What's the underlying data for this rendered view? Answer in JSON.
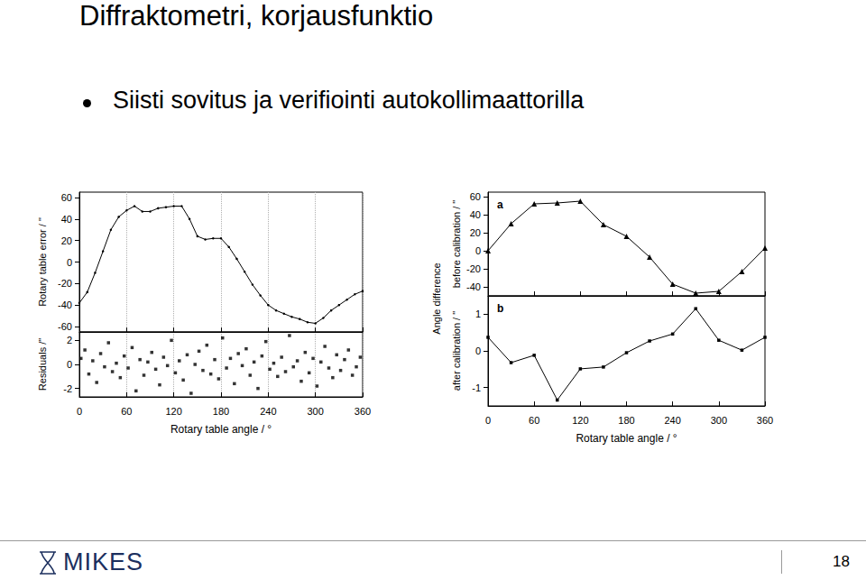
{
  "page": {
    "title": "Diffraktometri, korjausfunktio",
    "bullets": [
      "Siisti sovitus ja verifiointi autokollimaattorilla"
    ],
    "shared_y_label": "Angle difference",
    "logo": "MIKES",
    "page_number": "18"
  },
  "chart_data": [
    {
      "type": "line",
      "ylabel": "Rotary table error / \"",
      "marker": "dot",
      "color": "#000000",
      "x": [
        0,
        10,
        20,
        30,
        40,
        50,
        60,
        70,
        80,
        90,
        100,
        110,
        120,
        130,
        140,
        150,
        160,
        170,
        180,
        190,
        200,
        210,
        220,
        230,
        240,
        250,
        260,
        270,
        280,
        290,
        300,
        310,
        320,
        330,
        340,
        350,
        360
      ],
      "values": [
        -38,
        -28,
        -10,
        10,
        30,
        42,
        48,
        52,
        47,
        47,
        50,
        51,
        52,
        52,
        40,
        24,
        21,
        22,
        22,
        14,
        3,
        -9,
        -21,
        -31,
        -40,
        -45,
        -48,
        -51,
        -53,
        -56,
        -57,
        -52,
        -45,
        -40,
        -35,
        -30,
        -27
      ],
      "xlim": [
        0,
        360
      ],
      "xticks": [
        0,
        60,
        120,
        180,
        240,
        300,
        360
      ],
      "ylim": [
        -65,
        65
      ],
      "yticks": [
        -60,
        -40,
        -20,
        0,
        20,
        40,
        60
      ],
      "grid": "x",
      "tick_labels": "y"
    },
    {
      "type": "scatter",
      "ylabel": "Residuals /\"",
      "xlabel": "Rotary table angle / °",
      "marker": "square",
      "color": "#000000",
      "x": [
        2,
        7,
        12,
        17,
        22,
        27,
        32,
        37,
        42,
        47,
        52,
        57,
        62,
        67,
        72,
        77,
        82,
        87,
        92,
        97,
        102,
        107,
        112,
        117,
        122,
        127,
        132,
        137,
        142,
        147,
        152,
        157,
        162,
        167,
        172,
        177,
        182,
        187,
        192,
        197,
        202,
        207,
        212,
        217,
        222,
        227,
        232,
        237,
        242,
        247,
        252,
        257,
        262,
        267,
        272,
        277,
        282,
        287,
        292,
        297,
        302,
        307,
        312,
        317,
        322,
        327,
        332,
        337,
        342,
        347,
        352,
        357
      ],
      "values": [
        0.5,
        1.2,
        -0.8,
        0.3,
        -1.5,
        0.9,
        -0.2,
        1.8,
        -0.6,
        0.1,
        -1.1,
        0.7,
        -0.3,
        1.4,
        -2.2,
        0.4,
        -0.9,
        0.2,
        1.0,
        -0.4,
        -1.7,
        0.6,
        -0.1,
        2.0,
        -0.7,
        0.3,
        -1.3,
        0.8,
        -2.4,
        0.0,
        1.1,
        -0.5,
        1.6,
        -0.8,
        0.4,
        -1.2,
        2.2,
        -0.3,
        0.5,
        -1.6,
        0.9,
        -0.1,
        1.3,
        -0.9,
        0.2,
        -2.0,
        0.7,
        1.9,
        -0.4,
        0.1,
        -1.0,
        0.6,
        -0.6,
        2.4,
        -0.2,
        0.3,
        -1.4,
        1.0,
        -0.7,
        0.5,
        -1.8,
        0.2,
        1.5,
        -0.3,
        -1.1,
        0.8,
        -0.5,
        0.4,
        1.2,
        -0.9,
        -0.2,
        0.6
      ],
      "xlim": [
        0,
        360
      ],
      "xticks": [
        0,
        60,
        120,
        180,
        240,
        300,
        360
      ],
      "ylim": [
        -2.7,
        2.7
      ],
      "yticks": [
        -2,
        0,
        2
      ],
      "grid": "x"
    },
    {
      "type": "line",
      "ylabel": "before calibration / \"",
      "annotation": "a",
      "marker": "triangle",
      "color": "#000000",
      "x": [
        0,
        30,
        60,
        90,
        120,
        150,
        180,
        210,
        240,
        270,
        300,
        330,
        360
      ],
      "values": [
        0,
        30,
        52,
        53,
        55,
        29,
        16,
        -7,
        -37,
        -47,
        -45,
        -23,
        3
      ],
      "xlim": [
        0,
        360
      ],
      "xticks": [
        0,
        60,
        120,
        180,
        240,
        300,
        360
      ],
      "ylim": [
        -50,
        65
      ],
      "yticks": [
        -40,
        -20,
        0,
        20,
        40,
        60
      ],
      "grid": false,
      "tick_labels": "y"
    },
    {
      "type": "line",
      "ylabel": "after calibration / \"",
      "xlabel": "Rotary table angle / °",
      "annotation": "b",
      "marker": "square",
      "color": "#000000",
      "x": [
        0,
        30,
        60,
        90,
        120,
        150,
        180,
        210,
        240,
        270,
        300,
        330,
        360
      ],
      "values": [
        0.37,
        -0.32,
        -0.12,
        -1.34,
        -0.49,
        -0.44,
        -0.05,
        0.27,
        0.46,
        1.15,
        0.29,
        0.02,
        0.37
      ],
      "xlim": [
        0,
        360
      ],
      "xticks": [
        0,
        60,
        120,
        180,
        240,
        300,
        360
      ],
      "ylim": [
        -1.5,
        1.5
      ],
      "yticks": [
        -1,
        0,
        1
      ],
      "grid": false
    }
  ]
}
